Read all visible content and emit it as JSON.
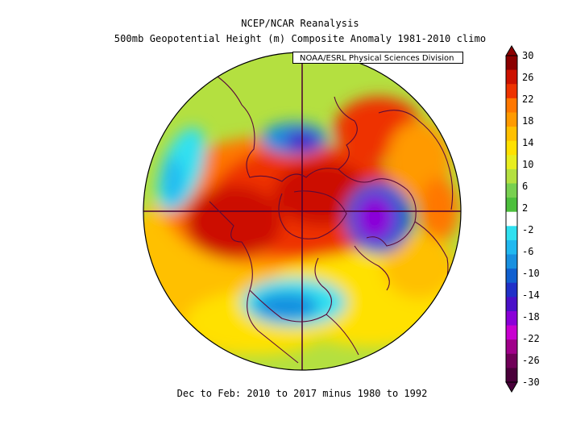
{
  "title_line1": "NCEP/NCAR Reanalysis",
  "title_line2": "500mb Geopotential Height (m) Composite Anomaly 1981-2010 climo",
  "credit": "NOAA/ESRL Physical Sciences Division",
  "footer": "Dec to Feb: 2010 to 2017 minus 1980 to 1992",
  "colorbar": {
    "labels": [
      "30",
      "26",
      "22",
      "18",
      "14",
      "10",
      "6",
      "2",
      "-2",
      "-6",
      "-10",
      "-14",
      "-18",
      "-22",
      "-26",
      "-30"
    ],
    "colors": [
      "#8b0000",
      "#cc1100",
      "#ee3300",
      "#ff7700",
      "#ff9a00",
      "#ffc000",
      "#ffe100",
      "#e8ee20",
      "#b4e040",
      "#78d050",
      "#4cbf3c",
      "#ffffff",
      "#30e0f0",
      "#20b8f0",
      "#1890e0",
      "#1060d0",
      "#2030c8",
      "#4a10c8",
      "#8a00d8",
      "#c800d0",
      "#a0008a",
      "#700058",
      "#4a003a"
    ]
  },
  "map": {
    "projection": "polar stereographic, North Pole",
    "field": "500mb geopotential height anomaly",
    "units": "m",
    "features": [
      {
        "name": "north-atlantic-positive",
        "value": 30
      },
      {
        "name": "arctic-positive",
        "value": 26
      },
      {
        "name": "barents-negative",
        "value": -18
      },
      {
        "name": "east-siberia-positive",
        "value": 22
      },
      {
        "name": "north-america-negative",
        "value": -10
      },
      {
        "name": "north-asia-negative",
        "value": -14
      },
      {
        "name": "pacific-negative",
        "value": -6
      }
    ]
  }
}
